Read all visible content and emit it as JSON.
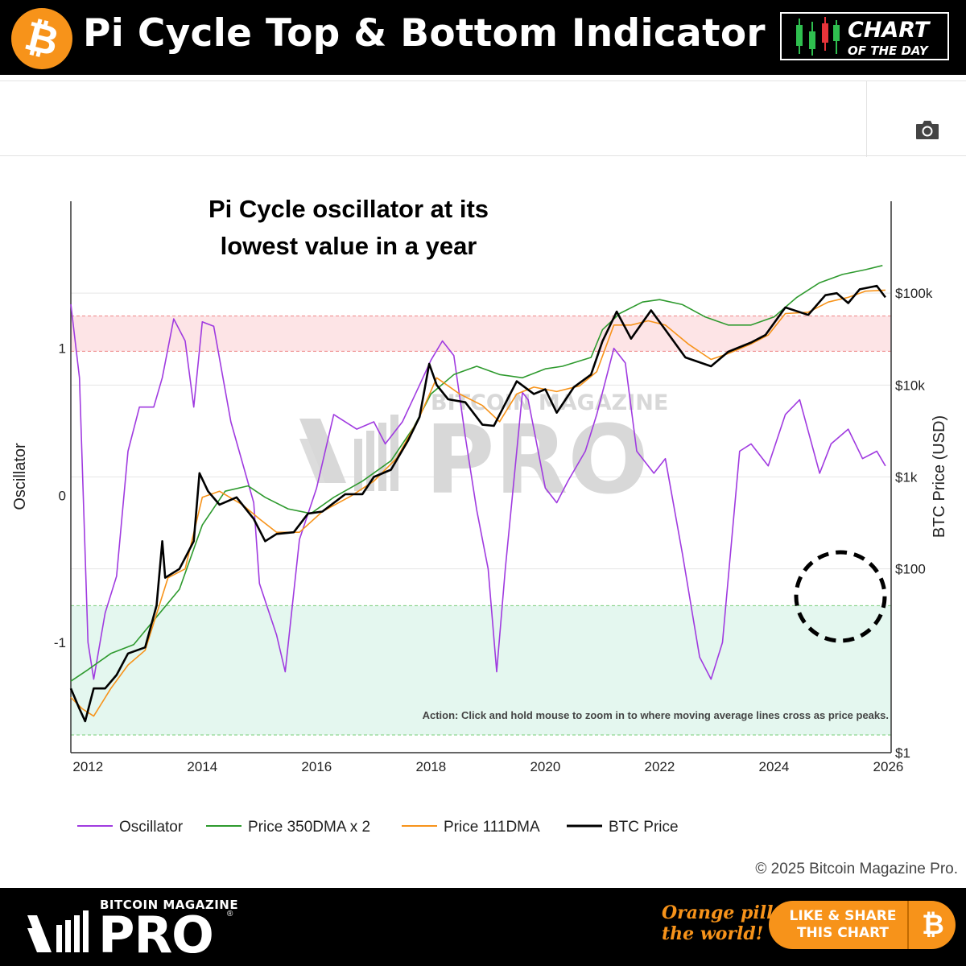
{
  "header": {
    "title": "Pi Cycle Top & Bottom Indicator",
    "logo_glyph": "₿",
    "badge_line1": "CHART",
    "badge_line2": "OF THE DAY"
  },
  "toolbar": {
    "camera_icon": "camera-icon"
  },
  "chart_data": {
    "type": "line",
    "annotation": "Pi Cycle oscillator at its lowest value in a year",
    "action_note": "Action: Click and hold mouse to zoom in to where moving average lines cross as price peaks.",
    "watermark": "BITCOIN MAGAZINE PRO",
    "y_left_label": "Oscillator",
    "y_right_label": "BTC Price (USD)",
    "y_left_ticks": [
      "1",
      "0",
      "-1"
    ],
    "y_right_ticks": [
      "$100k",
      "$10k",
      "$1k",
      "$100",
      "$1"
    ],
    "x_ticks": [
      "2012",
      "2014",
      "2016",
      "2018",
      "2020",
      "2022",
      "2024",
      "2026"
    ],
    "x_range": [
      2011.7,
      2026.05
    ],
    "price_log_range": [
      1,
      1000000
    ],
    "oscillator_range": [
      -1.75,
      2.0
    ],
    "top_zone": [
      0.98,
      1.22
    ],
    "bottom_zone": [
      -1.75,
      -0.75
    ],
    "grid": true,
    "legend_position": "bottom",
    "series": [
      {
        "name": "Oscillator",
        "color": "#a03be0",
        "axis": "left",
        "points": [
          [
            2011.7,
            1.3
          ],
          [
            2011.85,
            0.8
          ],
          [
            2012.0,
            -1.0
          ],
          [
            2012.1,
            -1.25
          ],
          [
            2012.3,
            -0.8
          ],
          [
            2012.5,
            -0.55
          ],
          [
            2012.7,
            0.3
          ],
          [
            2012.9,
            0.6
          ],
          [
            2013.15,
            0.6
          ],
          [
            2013.3,
            0.8
          ],
          [
            2013.5,
            1.2
          ],
          [
            2013.7,
            1.05
          ],
          [
            2013.85,
            0.6
          ],
          [
            2014.0,
            1.18
          ],
          [
            2014.2,
            1.15
          ],
          [
            2014.5,
            0.5
          ],
          [
            2014.9,
            -0.05
          ],
          [
            2015.0,
            -0.6
          ],
          [
            2015.3,
            -0.95
          ],
          [
            2015.45,
            -1.2
          ],
          [
            2015.7,
            -0.3
          ],
          [
            2016.0,
            0.05
          ],
          [
            2016.3,
            0.55
          ],
          [
            2016.7,
            0.45
          ],
          [
            2017.0,
            0.5
          ],
          [
            2017.2,
            0.35
          ],
          [
            2017.5,
            0.5
          ],
          [
            2017.8,
            0.75
          ],
          [
            2018.0,
            0.92
          ],
          [
            2018.2,
            1.05
          ],
          [
            2018.4,
            0.95
          ],
          [
            2018.6,
            0.4
          ],
          [
            2018.8,
            -0.1
          ],
          [
            2019.0,
            -0.5
          ],
          [
            2019.15,
            -1.2
          ],
          [
            2019.3,
            -0.5
          ],
          [
            2019.6,
            0.7
          ],
          [
            2019.7,
            0.65
          ],
          [
            2020.0,
            0.05
          ],
          [
            2020.2,
            -0.05
          ],
          [
            2020.4,
            0.1
          ],
          [
            2020.7,
            0.3
          ],
          [
            2020.9,
            0.55
          ],
          [
            2021.2,
            1.0
          ],
          [
            2021.4,
            0.9
          ],
          [
            2021.6,
            0.3
          ],
          [
            2021.9,
            0.15
          ],
          [
            2022.1,
            0.25
          ],
          [
            2022.4,
            -0.4
          ],
          [
            2022.7,
            -1.1
          ],
          [
            2022.9,
            -1.25
          ],
          [
            2023.1,
            -1.0
          ],
          [
            2023.4,
            0.3
          ],
          [
            2023.6,
            0.35
          ],
          [
            2023.9,
            0.2
          ],
          [
            2024.2,
            0.55
          ],
          [
            2024.45,
            0.65
          ],
          [
            2024.8,
            0.15
          ],
          [
            2025.0,
            0.35
          ],
          [
            2025.3,
            0.45
          ],
          [
            2025.55,
            0.25
          ],
          [
            2025.8,
            0.3
          ],
          [
            2025.95,
            0.2
          ]
        ]
      },
      {
        "name": "Price 350DMA x 2",
        "color": "#2e9a2e",
        "axis": "right",
        "points": [
          [
            2011.7,
            6
          ],
          [
            2012.0,
            8
          ],
          [
            2012.4,
            12
          ],
          [
            2012.8,
            15
          ],
          [
            2013.2,
            30
          ],
          [
            2013.6,
            60
          ],
          [
            2014.0,
            300
          ],
          [
            2014.4,
            700
          ],
          [
            2014.8,
            800
          ],
          [
            2015.1,
            600
          ],
          [
            2015.5,
            450
          ],
          [
            2015.9,
            400
          ],
          [
            2016.3,
            600
          ],
          [
            2016.8,
            900
          ],
          [
            2017.3,
            1500
          ],
          [
            2017.7,
            3500
          ],
          [
            2018.0,
            8000
          ],
          [
            2018.4,
            13000
          ],
          [
            2018.8,
            16000
          ],
          [
            2019.2,
            13000
          ],
          [
            2019.6,
            12000
          ],
          [
            2020.0,
            15000
          ],
          [
            2020.3,
            16000
          ],
          [
            2020.8,
            20000
          ],
          [
            2021.0,
            40000
          ],
          [
            2021.3,
            60000
          ],
          [
            2021.7,
            80000
          ],
          [
            2022.0,
            85000
          ],
          [
            2022.4,
            75000
          ],
          [
            2022.8,
            55000
          ],
          [
            2023.2,
            45000
          ],
          [
            2023.6,
            45000
          ],
          [
            2024.0,
            55000
          ],
          [
            2024.4,
            90000
          ],
          [
            2024.8,
            130000
          ],
          [
            2025.2,
            160000
          ],
          [
            2025.6,
            180000
          ],
          [
            2025.9,
            200000
          ]
        ]
      },
      {
        "name": "Price 111DMA",
        "color": "#f7931a",
        "axis": "right",
        "points": [
          [
            2011.7,
            4
          ],
          [
            2011.9,
            3
          ],
          [
            2012.1,
            2.5
          ],
          [
            2012.4,
            5
          ],
          [
            2012.7,
            9
          ],
          [
            2013.0,
            13
          ],
          [
            2013.4,
            80
          ],
          [
            2013.7,
            100
          ],
          [
            2014.0,
            600
          ],
          [
            2014.3,
            700
          ],
          [
            2014.7,
            500
          ],
          [
            2015.0,
            350
          ],
          [
            2015.3,
            250
          ],
          [
            2015.7,
            250
          ],
          [
            2016.1,
            420
          ],
          [
            2016.6,
            620
          ],
          [
            2017.0,
            900
          ],
          [
            2017.4,
            1600
          ],
          [
            2017.8,
            4500
          ],
          [
            2018.1,
            12000
          ],
          [
            2018.5,
            8000
          ],
          [
            2018.9,
            6000
          ],
          [
            2019.2,
            4000
          ],
          [
            2019.5,
            8000
          ],
          [
            2019.8,
            9500
          ],
          [
            2020.2,
            8500
          ],
          [
            2020.6,
            9800
          ],
          [
            2020.9,
            14000
          ],
          [
            2021.2,
            45000
          ],
          [
            2021.5,
            45000
          ],
          [
            2021.8,
            50000
          ],
          [
            2022.1,
            45000
          ],
          [
            2022.5,
            28000
          ],
          [
            2022.9,
            19000
          ],
          [
            2023.2,
            22000
          ],
          [
            2023.6,
            28000
          ],
          [
            2023.9,
            35000
          ],
          [
            2024.2,
            60000
          ],
          [
            2024.6,
            62000
          ],
          [
            2024.95,
            80000
          ],
          [
            2025.3,
            90000
          ],
          [
            2025.6,
            105000
          ],
          [
            2025.95,
            108000
          ]
        ]
      },
      {
        "name": "BTC Price",
        "color": "#000000",
        "axis": "right",
        "points": [
          [
            2011.7,
            5
          ],
          [
            2011.85,
            3
          ],
          [
            2011.95,
            2.2
          ],
          [
            2012.1,
            5
          ],
          [
            2012.3,
            5
          ],
          [
            2012.5,
            7
          ],
          [
            2012.7,
            12
          ],
          [
            2013.0,
            14
          ],
          [
            2013.2,
            40
          ],
          [
            2013.3,
            200
          ],
          [
            2013.35,
            80
          ],
          [
            2013.6,
            100
          ],
          [
            2013.85,
            200
          ],
          [
            2013.95,
            1100
          ],
          [
            2014.1,
            700
          ],
          [
            2014.3,
            500
          ],
          [
            2014.6,
            600
          ],
          [
            2014.9,
            350
          ],
          [
            2015.1,
            200
          ],
          [
            2015.3,
            240
          ],
          [
            2015.6,
            250
          ],
          [
            2015.85,
            400
          ],
          [
            2016.1,
            420
          ],
          [
            2016.5,
            650
          ],
          [
            2016.8,
            650
          ],
          [
            2017.0,
            1000
          ],
          [
            2017.3,
            1200
          ],
          [
            2017.6,
            2500
          ],
          [
            2017.8,
            4500
          ],
          [
            2017.97,
            17000
          ],
          [
            2018.1,
            10000
          ],
          [
            2018.3,
            7000
          ],
          [
            2018.6,
            6500
          ],
          [
            2018.9,
            3700
          ],
          [
            2019.1,
            3600
          ],
          [
            2019.5,
            11000
          ],
          [
            2019.8,
            8000
          ],
          [
            2020.0,
            9000
          ],
          [
            2020.2,
            5000
          ],
          [
            2020.5,
            9500
          ],
          [
            2020.8,
            13000
          ],
          [
            2021.0,
            30000
          ],
          [
            2021.25,
            63000
          ],
          [
            2021.5,
            32000
          ],
          [
            2021.85,
            65000
          ],
          [
            2022.1,
            40000
          ],
          [
            2022.45,
            20000
          ],
          [
            2022.9,
            16000
          ],
          [
            2023.2,
            23000
          ],
          [
            2023.6,
            29000
          ],
          [
            2023.85,
            35000
          ],
          [
            2024.2,
            70000
          ],
          [
            2024.6,
            58000
          ],
          [
            2024.9,
            95000
          ],
          [
            2025.1,
            100000
          ],
          [
            2025.3,
            78000
          ],
          [
            2025.5,
            110000
          ],
          [
            2025.8,
            120000
          ],
          [
            2025.95,
            90000
          ]
        ]
      }
    ]
  },
  "copyright": "© 2025 Bitcoin Magazine Pro.",
  "footer": {
    "brand_small": "BITCOIN MAGAZINE",
    "brand_big": "PRO",
    "reg": "®",
    "slogan_line1": "Orange pill",
    "slogan_line2": "the world!",
    "share_line1": "LIKE & SHARE",
    "share_line2": "THIS CHART",
    "share_glyph": "₿"
  }
}
